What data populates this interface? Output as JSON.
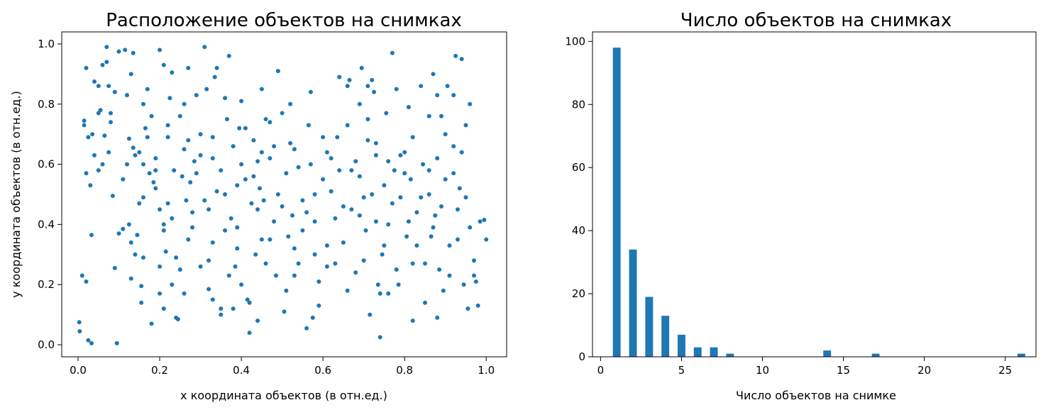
{
  "accent_color": "#1f77b4",
  "chart_data": [
    {
      "type": "scatter",
      "title": "Расположение объектов на снимках",
      "xlabel": "x координата объектов (в отн.ед.)",
      "ylabel": "y координата объектов (в отн.ед.)",
      "xlim": [
        -0.04,
        1.05
      ],
      "ylim": [
        -0.04,
        1.04
      ],
      "xticks": [
        0.0,
        0.2,
        0.4,
        0.6,
        0.8,
        1.0
      ],
      "xtick_labels": [
        "0.0",
        "0.2",
        "0.4",
        "0.6",
        "0.8",
        "1.0"
      ],
      "yticks": [
        0.0,
        0.2,
        0.4,
        0.6,
        0.8,
        1.0
      ],
      "ytick_labels": [
        "0.0",
        "0.2",
        "0.4",
        "0.6",
        "0.8",
        "1.0"
      ],
      "color": "#1f77b4",
      "points": [
        [
          0.003,
          0.075
        ],
        [
          0.004,
          0.045
        ],
        [
          0.01,
          0.23
        ],
        [
          0.02,
          0.21
        ],
        [
          0.025,
          0.015
        ],
        [
          0.033,
          0.005
        ],
        [
          0.033,
          0.365
        ],
        [
          0.015,
          0.745
        ],
        [
          0.015,
          0.73
        ],
        [
          0.02,
          0.92
        ],
        [
          0.025,
          0.69
        ],
        [
          0.035,
          0.7
        ],
        [
          0.04,
          0.63
        ],
        [
          0.04,
          0.875
        ],
        [
          0.05,
          0.58
        ],
        [
          0.05,
          0.86
        ],
        [
          0.055,
          0.78
        ],
        [
          0.06,
          0.93
        ],
        [
          0.065,
          0.695
        ],
        [
          0.07,
          0.99
        ],
        [
          0.07,
          0.94
        ],
        [
          0.075,
          0.86
        ],
        [
          0.075,
          0.64
        ],
        [
          0.08,
          0.77
        ],
        [
          0.08,
          0.74
        ],
        [
          0.085,
          0.495
        ],
        [
          0.09,
          0.255
        ],
        [
          0.095,
          0.005
        ],
        [
          0.1,
          0.37
        ],
        [
          0.1,
          0.975
        ],
        [
          0.11,
          0.385
        ],
        [
          0.115,
          0.98
        ],
        [
          0.12,
          0.83
        ],
        [
          0.125,
          0.685
        ],
        [
          0.125,
          0.4
        ],
        [
          0.13,
          0.9
        ],
        [
          0.13,
          0.34
        ],
        [
          0.13,
          0.22
        ],
        [
          0.135,
          0.97
        ],
        [
          0.135,
          0.655
        ],
        [
          0.14,
          0.63
        ],
        [
          0.145,
          0.365
        ],
        [
          0.15,
          0.47
        ],
        [
          0.155,
          0.195
        ],
        [
          0.155,
          0.14
        ],
        [
          0.16,
          0.49
        ],
        [
          0.16,
          0.6
        ],
        [
          0.165,
          0.72
        ],
        [
          0.17,
          0.85
        ],
        [
          0.175,
          0.57
        ],
        [
          0.18,
          0.76
        ],
        [
          0.185,
          0.54
        ],
        [
          0.19,
          0.58
        ],
        [
          0.19,
          0.62
        ],
        [
          0.2,
          0.98
        ],
        [
          0.2,
          0.45
        ],
        [
          0.2,
          0.26
        ],
        [
          0.21,
          0.93
        ],
        [
          0.21,
          0.4
        ],
        [
          0.21,
          0.38
        ],
        [
          0.215,
          0.31
        ],
        [
          0.22,
          0.73
        ],
        [
          0.22,
          0.47
        ],
        [
          0.225,
          0.82
        ],
        [
          0.23,
          0.905
        ],
        [
          0.23,
          0.42
        ],
        [
          0.235,
          0.58
        ],
        [
          0.24,
          0.29
        ],
        [
          0.245,
          0.085
        ],
        [
          0.25,
          0.76
        ],
        [
          0.255,
          0.56
        ],
        [
          0.26,
          0.65
        ],
        [
          0.265,
          0.48
        ],
        [
          0.27,
          0.92
        ],
        [
          0.275,
          0.54
        ],
        [
          0.28,
          0.39
        ],
        [
          0.285,
          0.61
        ],
        [
          0.29,
          0.83
        ],
        [
          0.3,
          0.7
        ],
        [
          0.3,
          0.26
        ],
        [
          0.31,
          0.99
        ],
        [
          0.315,
          0.85
        ],
        [
          0.32,
          0.45
        ],
        [
          0.32,
          0.185
        ],
        [
          0.33,
          0.62
        ],
        [
          0.33,
          0.34
        ],
        [
          0.335,
          0.89
        ],
        [
          0.34,
          0.92
        ],
        [
          0.35,
          0.58
        ],
        [
          0.35,
          0.12
        ],
        [
          0.36,
          0.5
        ],
        [
          0.36,
          0.38
        ],
        [
          0.365,
          0.75
        ],
        [
          0.37,
          0.96
        ],
        [
          0.375,
          0.42
        ],
        [
          0.38,
          0.66
        ],
        [
          0.385,
          0.26
        ],
        [
          0.39,
          0.53
        ],
        [
          0.395,
          0.72
        ],
        [
          0.4,
          0.81
        ],
        [
          0.4,
          0.2
        ],
        [
          0.41,
          0.55
        ],
        [
          0.415,
          0.15
        ],
        [
          0.42,
          0.04
        ],
        [
          0.425,
          0.47
        ],
        [
          0.43,
          0.68
        ],
        [
          0.435,
          0.3
        ],
        [
          0.44,
          0.61
        ],
        [
          0.445,
          0.52
        ],
        [
          0.45,
          0.85
        ],
        [
          0.455,
          0.48
        ],
        [
          0.46,
          0.75
        ],
        [
          0.47,
          0.35
        ],
        [
          0.48,
          0.66
        ],
        [
          0.485,
          0.23
        ],
        [
          0.49,
          0.91
        ],
        [
          0.5,
          0.46
        ],
        [
          0.505,
          0.11
        ],
        [
          0.51,
          0.57
        ],
        [
          0.515,
          0.36
        ],
        [
          0.52,
          0.8
        ],
        [
          0.525,
          0.43
        ],
        [
          0.53,
          0.65
        ],
        [
          0.54,
          0.27
        ],
        [
          0.55,
          0.48
        ],
        [
          0.56,
          0.055
        ],
        [
          0.565,
          0.73
        ],
        [
          0.57,
          0.6
        ],
        [
          0.575,
          0.09
        ],
        [
          0.58,
          0.41
        ],
        [
          0.59,
          0.21
        ],
        [
          0.6,
          0.55
        ],
        [
          0.61,
          0.33
        ],
        [
          0.62,
          0.62
        ],
        [
          0.63,
          0.27
        ],
        [
          0.635,
          0.69
        ],
        [
          0.64,
          0.89
        ],
        [
          0.65,
          0.46
        ],
        [
          0.66,
          0.73
        ],
        [
          0.665,
          0.88
        ],
        [
          0.67,
          0.58
        ],
        [
          0.68,
          0.24
        ],
        [
          0.69,
          0.8
        ],
        [
          0.695,
          0.92
        ],
        [
          0.7,
          0.49
        ],
        [
          0.705,
          0.38
        ],
        [
          0.71,
          0.68
        ],
        [
          0.715,
          0.1
        ],
        [
          0.72,
          0.88
        ],
        [
          0.725,
          0.84
        ],
        [
          0.73,
          0.63
        ],
        [
          0.735,
          0.2
        ],
        [
          0.74,
          0.025
        ],
        [
          0.745,
          0.3
        ],
        [
          0.75,
          0.53
        ],
        [
          0.755,
          0.77
        ],
        [
          0.76,
          0.4
        ],
        [
          0.77,
          0.97
        ],
        [
          0.775,
          0.58
        ],
        [
          0.78,
          0.85
        ],
        [
          0.785,
          0.2
        ],
        [
          0.79,
          0.49
        ],
        [
          0.8,
          0.64
        ],
        [
          0.805,
          0.36
        ],
        [
          0.81,
          0.79
        ],
        [
          0.815,
          0.55
        ],
        [
          0.82,
          0.27
        ],
        [
          0.83,
          0.44
        ],
        [
          0.84,
          0.86
        ],
        [
          0.845,
          0.6
        ],
        [
          0.85,
          0.14
        ],
        [
          0.86,
          0.5
        ],
        [
          0.865,
          0.36
        ],
        [
          0.87,
          0.9
        ],
        [
          0.875,
          0.43
        ],
        [
          0.88,
          0.62
        ],
        [
          0.885,
          0.25
        ],
        [
          0.89,
          0.76
        ],
        [
          0.895,
          0.18
        ],
        [
          0.9,
          0.55
        ],
        [
          0.905,
          0.86
        ],
        [
          0.91,
          0.33
        ],
        [
          0.92,
          0.66
        ],
        [
          0.925,
          0.96
        ],
        [
          0.93,
          0.45
        ],
        [
          0.935,
          0.52
        ],
        [
          0.94,
          0.95
        ],
        [
          0.945,
          0.2
        ],
        [
          0.95,
          0.73
        ],
        [
          0.955,
          0.12
        ],
        [
          0.96,
          0.39
        ],
        [
          0.97,
          0.23
        ],
        [
          0.975,
          0.21
        ],
        [
          0.985,
          0.41
        ],
        [
          0.995,
          0.415
        ],
        [
          1.0,
          0.35
        ],
        [
          0.03,
          0.53
        ],
        [
          0.06,
          0.6
        ],
        [
          0.11,
          0.55
        ],
        [
          0.14,
          0.3
        ],
        [
          0.16,
          0.29
        ],
        [
          0.17,
          0.69
        ],
        [
          0.18,
          0.07
        ],
        [
          0.19,
          0.52
        ],
        [
          0.2,
          0.17
        ],
        [
          0.21,
          0.12
        ],
        [
          0.22,
          0.69
        ],
        [
          0.23,
          0.2
        ],
        [
          0.24,
          0.09
        ],
        [
          0.25,
          0.25
        ],
        [
          0.26,
          0.8
        ],
        [
          0.27,
          0.35
        ],
        [
          0.28,
          0.44
        ],
        [
          0.29,
          0.57
        ],
        [
          0.3,
          0.63
        ],
        [
          0.31,
          0.48
        ],
        [
          0.32,
          0.28
        ],
        [
          0.33,
          0.69
        ],
        [
          0.34,
          0.51
        ],
        [
          0.35,
          0.1
        ],
        [
          0.36,
          0.82
        ],
        [
          0.37,
          0.23
        ],
        [
          0.38,
          0.12
        ],
        [
          0.39,
          0.39
        ],
        [
          0.4,
          0.6
        ],
        [
          0.41,
          0.72
        ],
        [
          0.42,
          0.14
        ],
        [
          0.43,
          0.56
        ],
        [
          0.44,
          0.45
        ],
        [
          0.45,
          0.64
        ],
        [
          0.46,
          0.27
        ],
        [
          0.47,
          0.74
        ],
        [
          0.48,
          0.41
        ],
        [
          0.49,
          0.5
        ],
        [
          0.5,
          0.77
        ],
        [
          0.51,
          0.18
        ],
        [
          0.52,
          0.67
        ],
        [
          0.53,
          0.32
        ],
        [
          0.54,
          0.59
        ],
        [
          0.55,
          0.38
        ],
        [
          0.56,
          0.44
        ],
        [
          0.57,
          0.84
        ],
        [
          0.58,
          0.5
        ],
        [
          0.59,
          0.13
        ],
        [
          0.6,
          0.69
        ],
        [
          0.61,
          0.26
        ],
        [
          0.62,
          0.51
        ],
        [
          0.63,
          0.42
        ],
        [
          0.64,
          0.58
        ],
        [
          0.65,
          0.34
        ],
        [
          0.66,
          0.86
        ],
        [
          0.67,
          0.45
        ],
        [
          0.68,
          0.61
        ],
        [
          0.69,
          0.56
        ],
        [
          0.7,
          0.28
        ],
        [
          0.71,
          0.86
        ],
        [
          0.72,
          0.5
        ],
        [
          0.73,
          0.67
        ],
        [
          0.74,
          0.17
        ],
        [
          0.75,
          0.33
        ],
        [
          0.76,
          0.61
        ],
        [
          0.77,
          0.47
        ],
        [
          0.78,
          0.25
        ],
        [
          0.79,
          0.63
        ],
        [
          0.8,
          0.57
        ],
        [
          0.81,
          0.41
        ],
        [
          0.82,
          0.69
        ],
        [
          0.83,
          0.33
        ],
        [
          0.84,
          0.49
        ],
        [
          0.85,
          0.27
        ],
        [
          0.86,
          0.58
        ],
        [
          0.87,
          0.39
        ],
        [
          0.88,
          0.83
        ],
        [
          0.89,
          0.46
        ],
        [
          0.9,
          0.7
        ],
        [
          0.91,
          0.23
        ],
        [
          0.92,
          0.57
        ],
        [
          0.93,
          0.35
        ],
        [
          0.94,
          0.64
        ],
        [
          0.95,
          0.49
        ],
        [
          0.96,
          0.8
        ],
        [
          0.05,
          0.77
        ],
        [
          0.09,
          0.84
        ],
        [
          0.12,
          0.6
        ],
        [
          0.15,
          0.64
        ],
        [
          0.27,
          0.68
        ],
        [
          0.33,
          0.15
        ],
        [
          0.44,
          0.08
        ],
        [
          0.47,
          0.62
        ],
        [
          0.53,
          0.23
        ],
        [
          0.61,
          0.64
        ],
        [
          0.66,
          0.18
        ],
        [
          0.69,
          0.43
        ],
        [
          0.73,
          0.41
        ],
        [
          0.76,
          0.17
        ],
        [
          0.86,
          0.76
        ],
        [
          0.92,
          0.83
        ],
        [
          0.97,
          0.28
        ],
        [
          0.02,
          0.57
        ],
        [
          0.16,
          0.8
        ],
        [
          0.26,
          0.17
        ],
        [
          0.39,
          0.32
        ],
        [
          0.45,
          0.35
        ],
        [
          0.58,
          0.3
        ],
        [
          0.71,
          0.75
        ],
        [
          0.82,
          0.08
        ],
        [
          0.88,
          0.09
        ],
        [
          0.98,
          0.13
        ]
      ]
    },
    {
      "type": "bar",
      "title": "Число объектов на снимках",
      "xlabel": "Число объектов на снимке",
      "ylabel": "",
      "xlim": [
        -0.5,
        26.9
      ],
      "ylim": [
        0,
        103
      ],
      "xticks": [
        0,
        5,
        10,
        15,
        20,
        25
      ],
      "xtick_labels": [
        "0",
        "5",
        "10",
        "15",
        "20",
        "25"
      ],
      "yticks": [
        0,
        20,
        40,
        60,
        80,
        100
      ],
      "ytick_labels": [
        "0",
        "20",
        "40",
        "60",
        "80",
        "100"
      ],
      "bar_width": 0.48,
      "color": "#1f77b4",
      "x": [
        1,
        2,
        3,
        4,
        5,
        6,
        7,
        8,
        14,
        17,
        26
      ],
      "values": [
        98,
        34,
        19,
        13,
        7,
        3,
        3,
        1,
        2,
        1,
        1
      ]
    }
  ]
}
